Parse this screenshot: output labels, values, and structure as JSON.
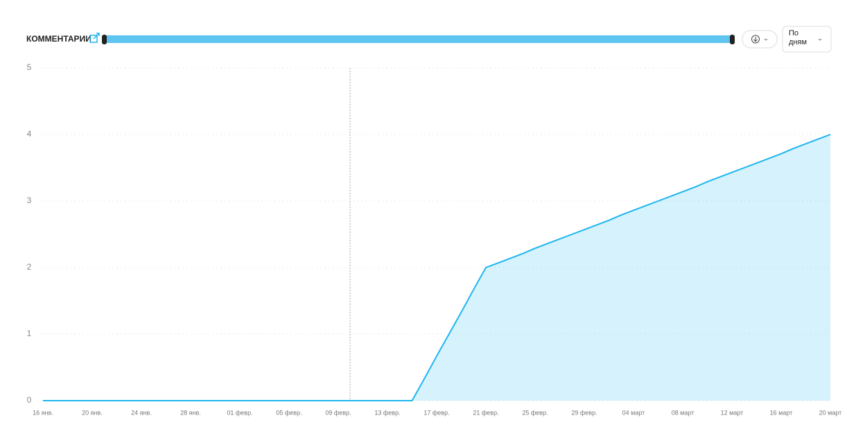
{
  "chart_data": {
    "type": "area",
    "title": "КОММЕНТАРИИ",
    "period": "По дням",
    "categories": [
      "16 янв.",
      null,
      null,
      null,
      "20 янв.",
      null,
      null,
      null,
      "24 янв.",
      null,
      null,
      null,
      "28 янв.",
      null,
      null,
      null,
      "01 февр.",
      null,
      null,
      null,
      "05 февр.",
      null,
      null,
      null,
      "09 февр.",
      null,
      null,
      null,
      "13 февр.",
      null,
      null,
      null,
      "17 февр.",
      null,
      null,
      null,
      "21 февр.",
      null,
      null,
      null,
      "25 февр.",
      null,
      null,
      null,
      "29 февр.",
      null,
      null,
      null,
      "04 март",
      null,
      null,
      null,
      "08 март",
      null,
      null,
      null,
      "12 март",
      null,
      null,
      null,
      "16 март",
      null,
      null,
      null,
      "20 март"
    ],
    "series": [
      {
        "color": "#1cb5ef",
        "values": [
          0,
          0,
          0,
          0,
          0,
          0,
          0,
          0,
          0,
          0,
          0,
          0,
          0,
          0,
          0,
          0,
          0,
          0,
          0,
          0,
          0,
          0,
          0,
          0,
          0,
          0,
          0,
          0,
          0,
          0,
          0,
          0.33,
          0.67,
          1,
          1.33,
          1.67,
          2,
          2.07,
          2.14,
          2.21,
          2.29,
          2.36,
          2.43,
          2.5,
          2.57,
          2.64,
          2.71,
          2.79,
          2.86,
          2.93,
          3,
          3.07,
          3.14,
          3.21,
          3.29,
          3.36,
          3.43,
          3.5,
          3.57,
          3.64,
          3.71,
          3.79,
          3.86,
          3.93,
          4
        ]
      }
    ],
    "ylim": [
      0,
      5
    ],
    "yticks": [
      0,
      1,
      2,
      3,
      4,
      5
    ],
    "grid": true
  }
}
